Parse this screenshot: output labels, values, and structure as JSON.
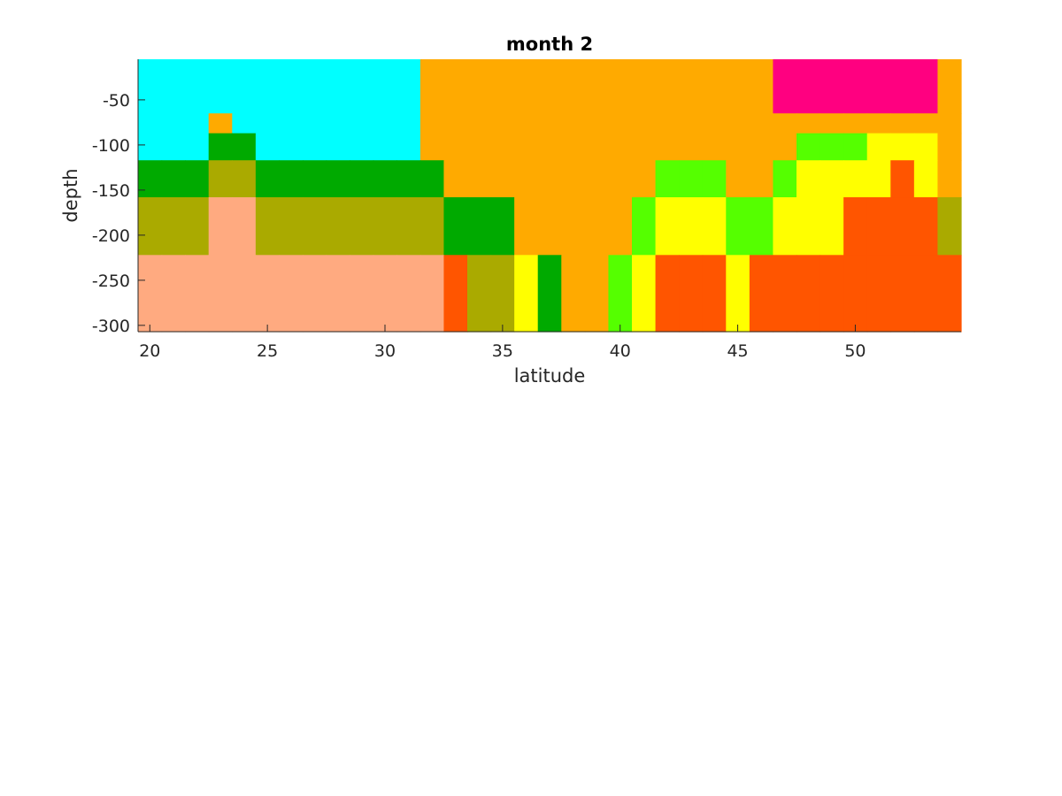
{
  "chart_data": {
    "type": "heatmap",
    "title": "month 2",
    "xlabel": "latitude",
    "ylabel": "depth",
    "xlim": [
      19.5,
      54.5
    ],
    "ylim": [
      -307,
      -5
    ],
    "xticks": [
      20,
      25,
      30,
      35,
      40,
      45,
      50
    ],
    "yticks": [
      -50,
      -100,
      -150,
      -200,
      -250,
      -300
    ],
    "x_centers": [
      20,
      21,
      22,
      23,
      24,
      25,
      26,
      27,
      28,
      29,
      30,
      31,
      32,
      33,
      34,
      35,
      36,
      37,
      38,
      39,
      40,
      41,
      42,
      43,
      44,
      45,
      46,
      47,
      48,
      49,
      50,
      51,
      52,
      53,
      54
    ],
    "depth_bounds": [
      -5,
      -65,
      -87,
      -117,
      -158,
      -222,
      -307
    ],
    "palette": {
      "1": "#00ffff",
      "2": "#ffaa00",
      "3": "#ff0080",
      "4": "#00aa00",
      "5": "#aaaa00",
      "6": "#ffaa80",
      "7": "#55ff00",
      "8": "#ffff00",
      "9": "#ff5500"
    },
    "categories": [
      [
        1,
        1,
        1,
        1,
        1,
        1,
        1,
        1,
        1,
        1,
        1,
        1,
        2,
        2,
        2,
        2,
        2,
        2,
        2,
        2,
        2,
        2,
        2,
        2,
        2,
        2,
        2,
        3,
        3,
        3,
        3,
        3,
        3,
        3,
        2
      ],
      [
        1,
        1,
        1,
        2,
        1,
        1,
        1,
        1,
        1,
        1,
        1,
        1,
        2,
        2,
        2,
        2,
        2,
        2,
        2,
        2,
        2,
        2,
        2,
        2,
        2,
        2,
        2,
        2,
        2,
        2,
        2,
        2,
        2,
        2,
        2
      ],
      [
        1,
        1,
        1,
        4,
        4,
        1,
        1,
        1,
        1,
        1,
        1,
        1,
        2,
        2,
        2,
        2,
        2,
        2,
        2,
        2,
        2,
        2,
        2,
        2,
        2,
        2,
        2,
        2,
        7,
        7,
        7,
        8,
        8,
        8,
        2
      ],
      [
        4,
        4,
        4,
        5,
        5,
        4,
        4,
        4,
        4,
        4,
        4,
        4,
        4,
        2,
        2,
        2,
        2,
        2,
        2,
        2,
        2,
        2,
        7,
        7,
        7,
        2,
        2,
        7,
        8,
        8,
        8,
        8,
        9,
        8,
        2
      ],
      [
        5,
        5,
        5,
        6,
        6,
        5,
        5,
        5,
        5,
        5,
        5,
        5,
        5,
        4,
        4,
        4,
        2,
        2,
        2,
        2,
        2,
        7,
        8,
        8,
        8,
        7,
        7,
        8,
        8,
        8,
        9,
        9,
        9,
        9,
        5
      ],
      [
        6,
        6,
        6,
        6,
        6,
        6,
        6,
        6,
        6,
        6,
        6,
        6,
        6,
        9,
        5,
        5,
        8,
        4,
        2,
        2,
        7,
        8,
        9,
        9,
        9,
        8,
        9,
        9,
        9,
        9,
        9,
        9,
        9,
        9,
        9
      ]
    ]
  }
}
